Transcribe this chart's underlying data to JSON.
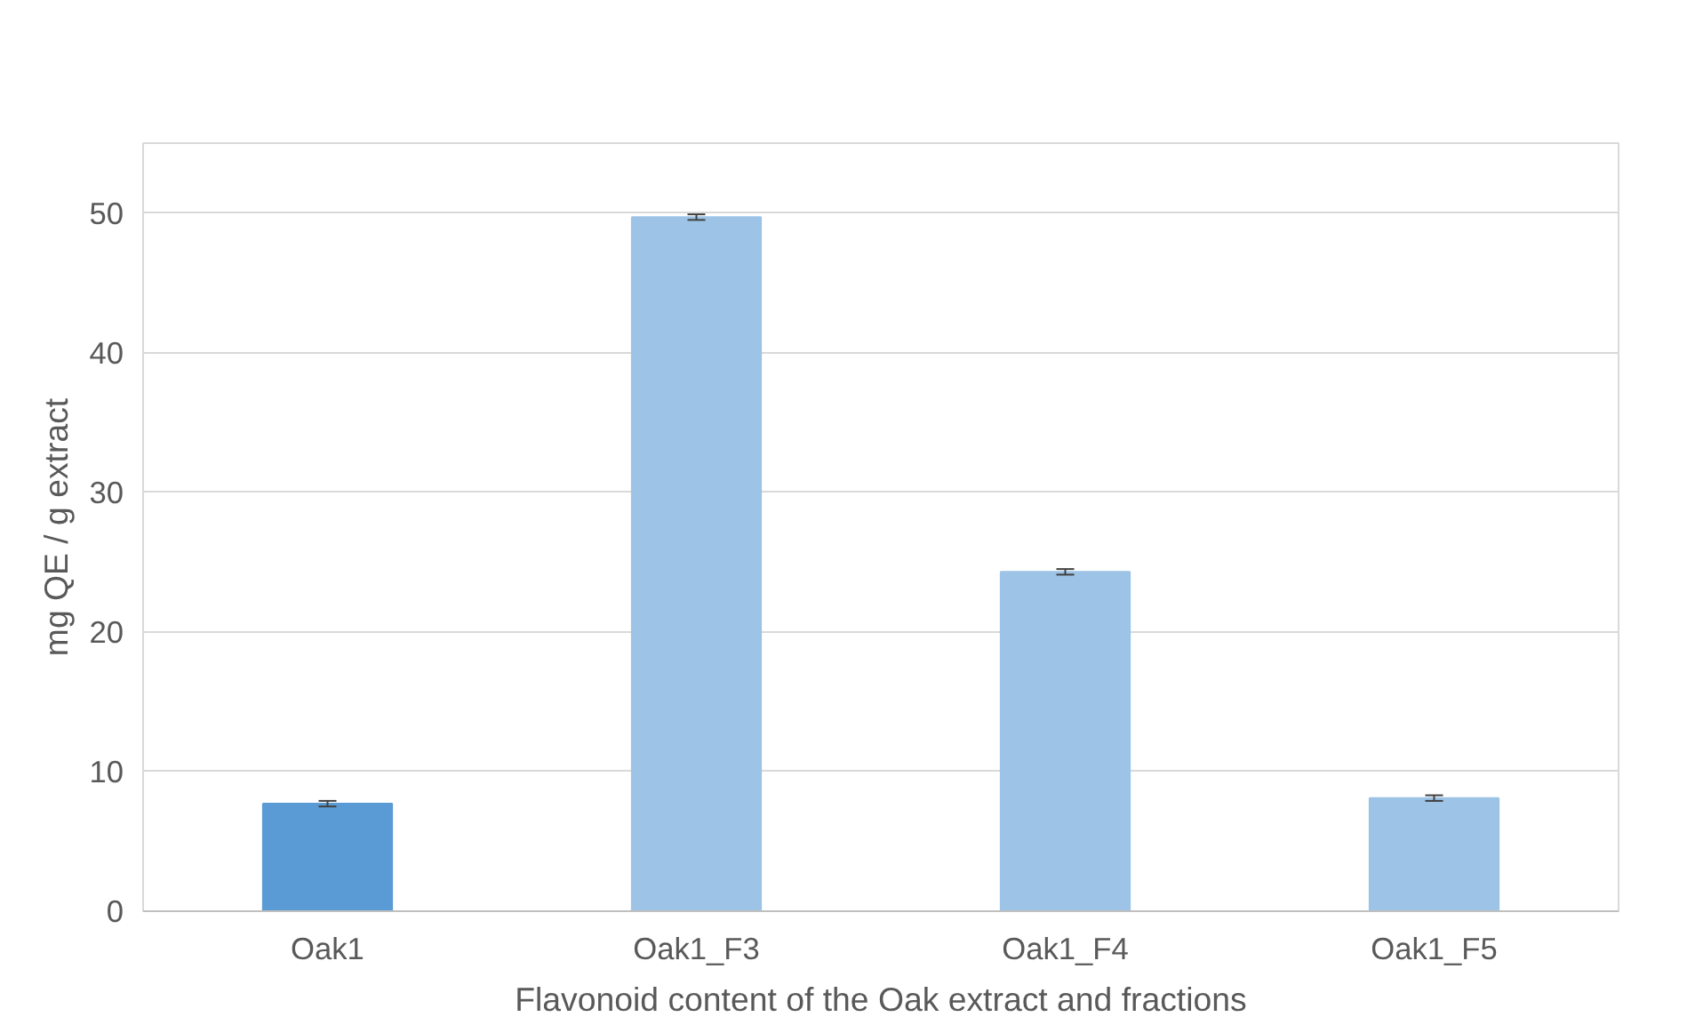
{
  "chart_data": {
    "type": "bar",
    "xlabel": "Flavonoid content of the Oak extract and fractions",
    "ylabel": "mg QE / g extract",
    "categories": [
      "Oak1",
      "Oak1_F3",
      "Oak1_F4",
      "Oak1_F5"
    ],
    "values": [
      7.7,
      49.7,
      24.3,
      8.1
    ],
    "errors": [
      0.2,
      0.2,
      0.2,
      0.2
    ],
    "colors": [
      "#5b9bd5",
      "#9dc3e6",
      "#9dc3e6",
      "#9dc3e6"
    ],
    "ylim": [
      0,
      55
    ],
    "yticks": [
      0,
      10,
      20,
      30,
      40,
      50
    ],
    "grid": "y"
  }
}
